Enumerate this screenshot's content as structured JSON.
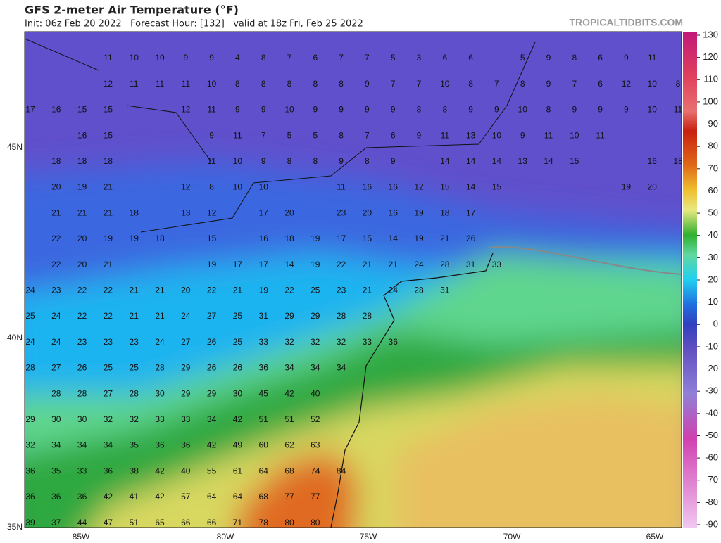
{
  "header": {
    "title": "GFS 2-meter Air Temperature (°F)",
    "subtitle": "Init: 06z Feb 20 2022   Forecast Hour: [132]   valid at 18z Fri, Feb 25 2022",
    "source": "TROPICALTIDBITS.COM"
  },
  "map": {
    "lat_labels": [
      "45N",
      "40N",
      "35N"
    ],
    "lon_labels": [
      "85W",
      "80W",
      "75W",
      "70W",
      "65W"
    ],
    "temperatures": [
      [
        null,
        null,
        null,
        11,
        10,
        10,
        9,
        9,
        4,
        8,
        7,
        6,
        7,
        7,
        5,
        3,
        6,
        6,
        null,
        5,
        9,
        8,
        6,
        9,
        11,
        null
      ],
      [
        null,
        null,
        null,
        12,
        11,
        11,
        11,
        10,
        8,
        8,
        8,
        8,
        8,
        9,
        7,
        7,
        10,
        8,
        7,
        8,
        9,
        7,
        6,
        12,
        10,
        8
      ],
      [
        17,
        16,
        15,
        15,
        null,
        null,
        12,
        11,
        9,
        9,
        10,
        9,
        9,
        9,
        9,
        8,
        8,
        9,
        9,
        10,
        8,
        9,
        9,
        9,
        10,
        11
      ],
      [
        null,
        null,
        16,
        15,
        null,
        null,
        null,
        9,
        11,
        7,
        5,
        5,
        8,
        7,
        6,
        9,
        11,
        13,
        10,
        9,
        11,
        10,
        11,
        null,
        null,
        null
      ],
      [
        null,
        18,
        18,
        18,
        null,
        null,
        null,
        11,
        10,
        9,
        8,
        8,
        9,
        8,
        9,
        null,
        14,
        14,
        14,
        13,
        14,
        15,
        null,
        null,
        16,
        18
      ],
      [
        null,
        20,
        19,
        21,
        null,
        null,
        12,
        8,
        10,
        10,
        null,
        null,
        11,
        16,
        16,
        12,
        15,
        14,
        15,
        null,
        null,
        null,
        null,
        19,
        20,
        null
      ],
      [
        null,
        21,
        21,
        21,
        18,
        null,
        13,
        12,
        null,
        17,
        20,
        null,
        23,
        20,
        16,
        19,
        18,
        17,
        null,
        null,
        null,
        null,
        null,
        null,
        null,
        null
      ],
      [
        null,
        22,
        20,
        19,
        19,
        18,
        null,
        15,
        null,
        16,
        18,
        19,
        17,
        15,
        14,
        19,
        21,
        26,
        null,
        null,
        null,
        null,
        null,
        null,
        null,
        null
      ],
      [
        null,
        22,
        20,
        21,
        null,
        null,
        null,
        19,
        17,
        17,
        14,
        19,
        22,
        21,
        21,
        24,
        28,
        31,
        33,
        null,
        null,
        null,
        null,
        null,
        null,
        null
      ],
      [
        24,
        23,
        22,
        22,
        21,
        21,
        20,
        22,
        21,
        19,
        22,
        25,
        23,
        21,
        24,
        28,
        31,
        null,
        null,
        null,
        null,
        null,
        null,
        null,
        null,
        null
      ],
      [
        25,
        24,
        22,
        22,
        21,
        21,
        24,
        27,
        25,
        31,
        29,
        29,
        28,
        28,
        null,
        null,
        null,
        null,
        null,
        null,
        null,
        null,
        null,
        null,
        null,
        null
      ],
      [
        24,
        24,
        23,
        23,
        23,
        24,
        27,
        26,
        25,
        33,
        32,
        32,
        32,
        33,
        36,
        null,
        null,
        null,
        null,
        null,
        null,
        null,
        null,
        null,
        null,
        null
      ],
      [
        28,
        27,
        26,
        25,
        25,
        28,
        29,
        26,
        26,
        36,
        34,
        34,
        34,
        null,
        null,
        null,
        null,
        null,
        null,
        null,
        null,
        null,
        null,
        null,
        null,
        null
      ],
      [
        null,
        28,
        28,
        27,
        28,
        30,
        29,
        29,
        30,
        45,
        42,
        40,
        null,
        null,
        null,
        null,
        null,
        null,
        null,
        null,
        null,
        null,
        null,
        null,
        null,
        null
      ],
      [
        29,
        30,
        30,
        32,
        32,
        33,
        33,
        34,
        42,
        51,
        51,
        52,
        null,
        null,
        null,
        null,
        null,
        null,
        null,
        null,
        null,
        null,
        null,
        null,
        null,
        null
      ],
      [
        32,
        34,
        34,
        34,
        35,
        36,
        36,
        42,
        49,
        60,
        62,
        63,
        null,
        null,
        null,
        null,
        null,
        null,
        null,
        null,
        null,
        null,
        null,
        null,
        null,
        null
      ],
      [
        36,
        35,
        33,
        36,
        38,
        42,
        40,
        55,
        61,
        64,
        68,
        74,
        84,
        null,
        null,
        null,
        null,
        null,
        null,
        null,
        null,
        null,
        null,
        null,
        null,
        null
      ],
      [
        36,
        36,
        36,
        42,
        41,
        42,
        57,
        64,
        64,
        68,
        77,
        77,
        null,
        null,
        null,
        null,
        null,
        null,
        null,
        null,
        null,
        null,
        null,
        null,
        null,
        null
      ],
      [
        39,
        37,
        44,
        47,
        51,
        65,
        66,
        66,
        71,
        78,
        80,
        80,
        null,
        null,
        null,
        null,
        null,
        null,
        null,
        null,
        null,
        null,
        null,
        null,
        null,
        null
      ]
    ]
  },
  "colorbar": {
    "lim": [
      -90,
      130
    ],
    "ticks": [
      130,
      120,
      110,
      100,
      90,
      80,
      70,
      60,
      50,
      40,
      30,
      20,
      10,
      0,
      -10,
      -20,
      -30,
      -40,
      -50,
      -60,
      -70,
      -80,
      -90
    ]
  }
}
